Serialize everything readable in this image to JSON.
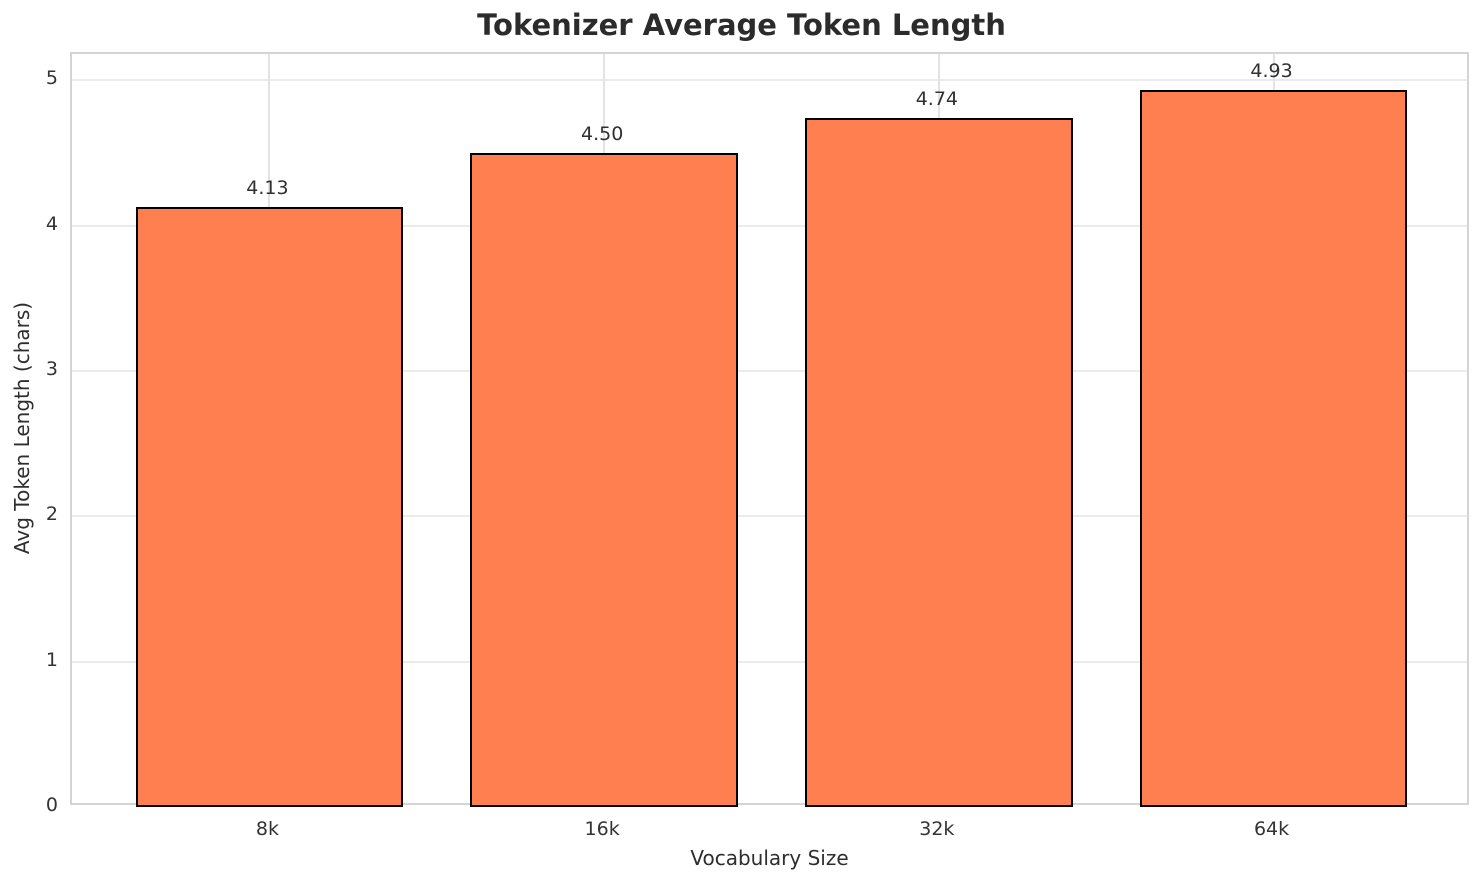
{
  "chart_data": {
    "type": "bar",
    "title": "Tokenizer Average Token Length",
    "xlabel": "Vocabulary Size",
    "ylabel": "Avg Token Length (chars)",
    "categories": [
      "8k",
      "16k",
      "32k",
      "64k"
    ],
    "values": [
      4.13,
      4.5,
      4.74,
      4.93
    ],
    "value_labels": [
      "4.13",
      "4.50",
      "4.74",
      "4.93"
    ],
    "yticks": [
      0,
      1,
      2,
      3,
      4,
      5
    ],
    "ylim": [
      0,
      5.18
    ],
    "grid": "on",
    "legend": "none",
    "colors": {
      "bar_fill": "#FF7F50",
      "bar_edge": "#000000",
      "grid_h": "#EBEBEB",
      "grid_v": "#E3E3E3",
      "spine": "#D4D4D4",
      "title_text": "#2B2B2B",
      "tick_text": "#333333"
    }
  }
}
